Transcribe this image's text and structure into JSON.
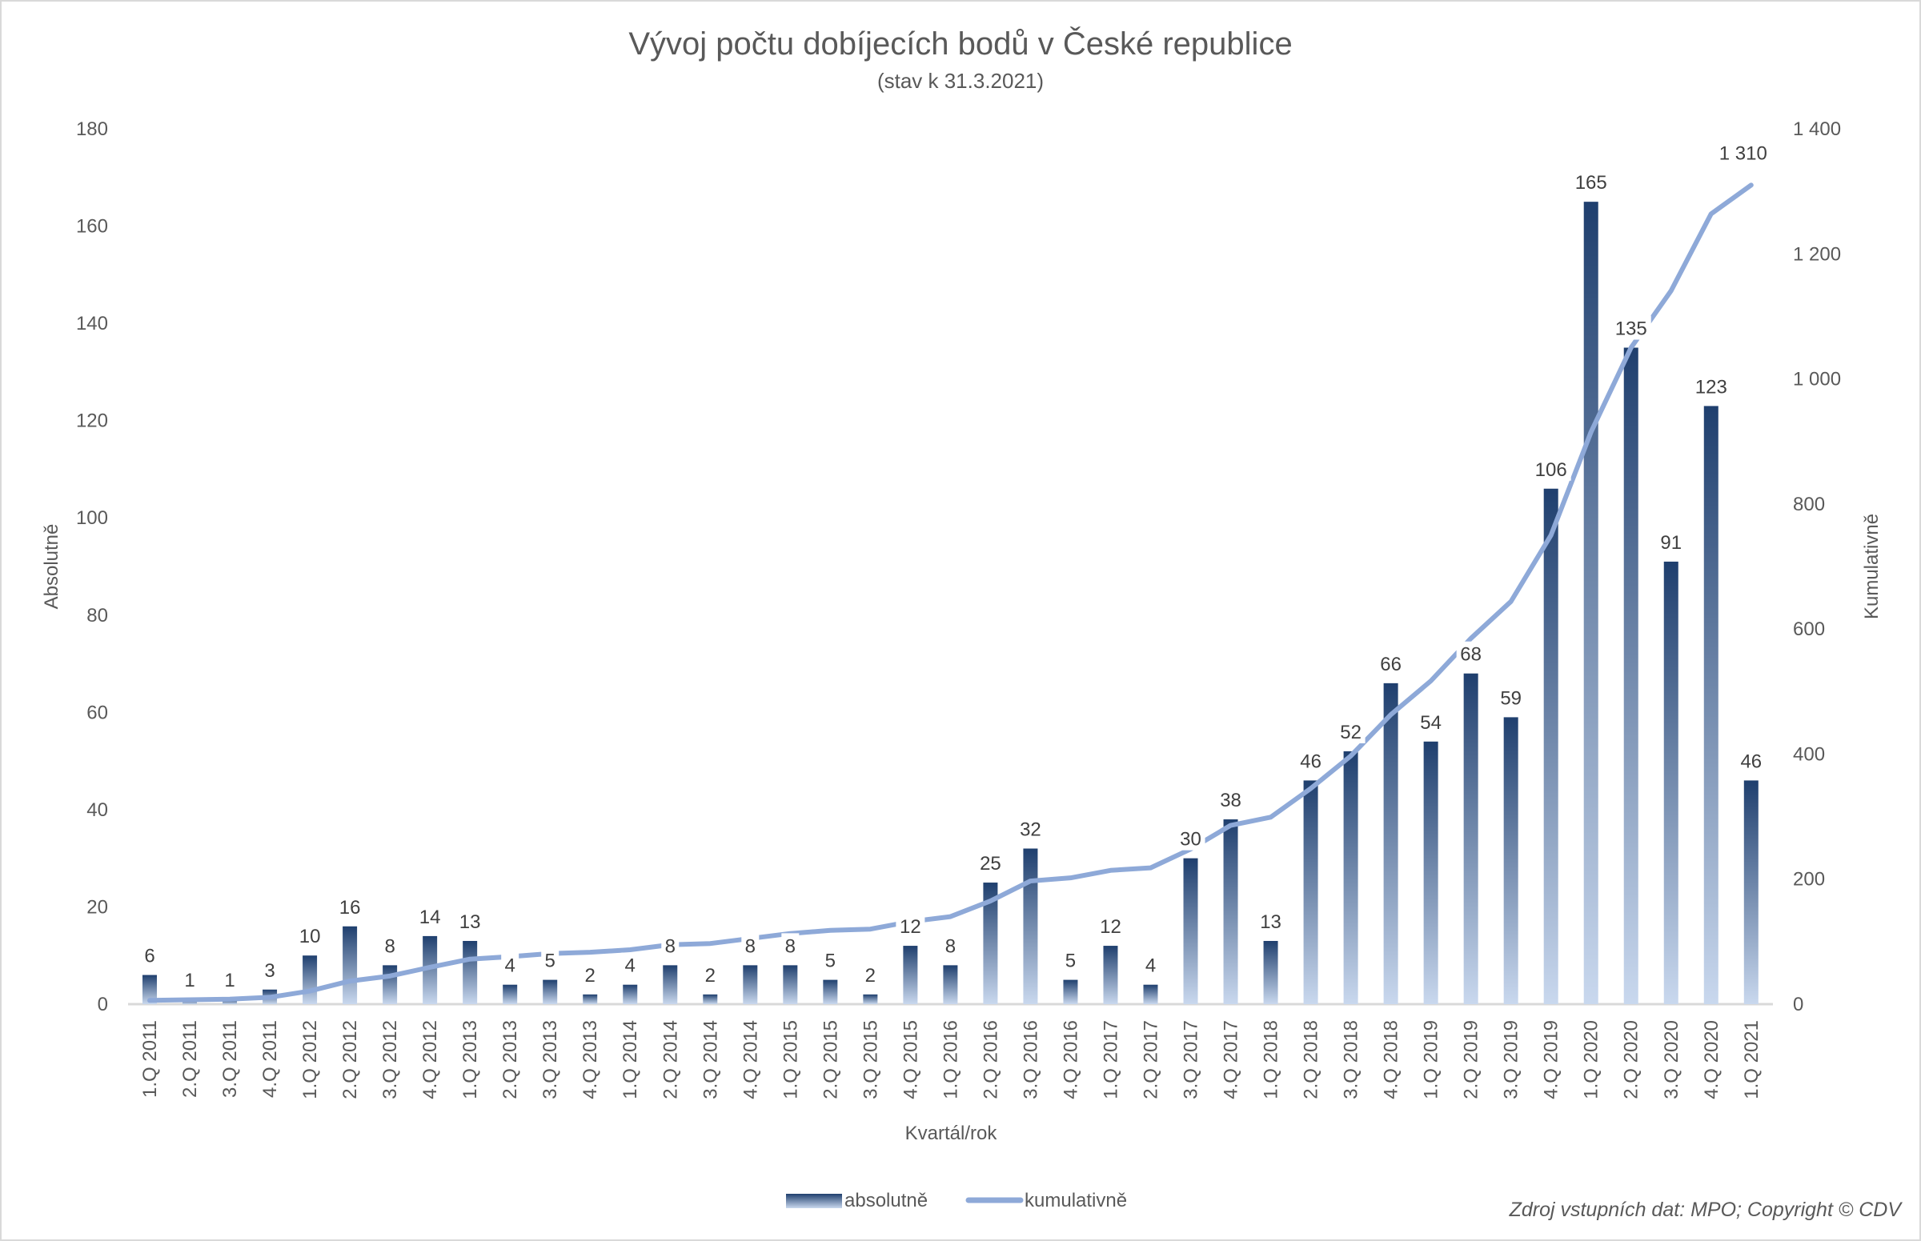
{
  "chart_data": {
    "type": "bar+line",
    "title": "Vývoj počtu dobíjecích bodů v České republice",
    "subtitle": "(stav k 31.3.2021)",
    "xlabel": "Kvartál/rok",
    "ylabel": "Absolutně",
    "y2label": "Kumulativně",
    "ylim": [
      0,
      180
    ],
    "yticks": [
      0,
      20,
      40,
      60,
      80,
      100,
      120,
      140,
      160,
      180
    ],
    "y2lim": [
      0,
      1400
    ],
    "y2ticks": [
      "0",
      "200",
      "400",
      "600",
      "800",
      "1 000",
      "1 200",
      "1 400"
    ],
    "legend_position": "bottom",
    "grid": false,
    "categories": [
      "1.Q 2011",
      "2.Q 2011",
      "3.Q 2011",
      "4.Q 2011",
      "1.Q 2012",
      "2.Q 2012",
      "3.Q 2012",
      "4.Q 2012",
      "1.Q 2013",
      "2.Q 2013",
      "3.Q 2013",
      "4.Q 2013",
      "1.Q 2014",
      "2.Q 2014",
      "3.Q 2014",
      "4.Q 2014",
      "1.Q 2015",
      "2.Q 2015",
      "3.Q 2015",
      "4.Q 2015",
      "1.Q 2016",
      "2.Q 2016",
      "3.Q 2016",
      "4.Q 2016",
      "1.Q 2017",
      "2.Q 2017",
      "3.Q 2017",
      "4.Q 2017",
      "1.Q 2018",
      "2.Q 2018",
      "3.Q 2018",
      "4.Q 2018",
      "1.Q 2019",
      "2.Q 2019",
      "3.Q 2019",
      "4.Q 2019",
      "1.Q 2020",
      "2.Q 2020",
      "3.Q 2020",
      "4.Q 2020",
      "1.Q 2021"
    ],
    "series": [
      {
        "name": "absolutně",
        "type": "bar",
        "axis": "left",
        "color": "#1f3f6e",
        "values": [
          6,
          1,
          1,
          3,
          10,
          16,
          8,
          14,
          13,
          4,
          5,
          2,
          4,
          8,
          2,
          8,
          8,
          5,
          2,
          12,
          8,
          25,
          32,
          5,
          12,
          4,
          30,
          38,
          13,
          46,
          52,
          66,
          54,
          68,
          59,
          106,
          165,
          135,
          91,
          123,
          46
        ]
      },
      {
        "name": "kumulativně",
        "type": "line",
        "axis": "right",
        "color": "#8ea9d8",
        "values": [
          6,
          7,
          8,
          11,
          21,
          37,
          45,
          59,
          72,
          76,
          81,
          83,
          87,
          95,
          97,
          105,
          113,
          118,
          120,
          132,
          140,
          165,
          197,
          202,
          214,
          218,
          248,
          286,
          299,
          345,
          397,
          463,
          517,
          585,
          644,
          750,
          915,
          1050,
          1141,
          1264,
          1310
        ],
        "end_label": "1 310"
      }
    ],
    "source": "Zdroj vstupních dat: MPO; Copyright © CDV"
  }
}
